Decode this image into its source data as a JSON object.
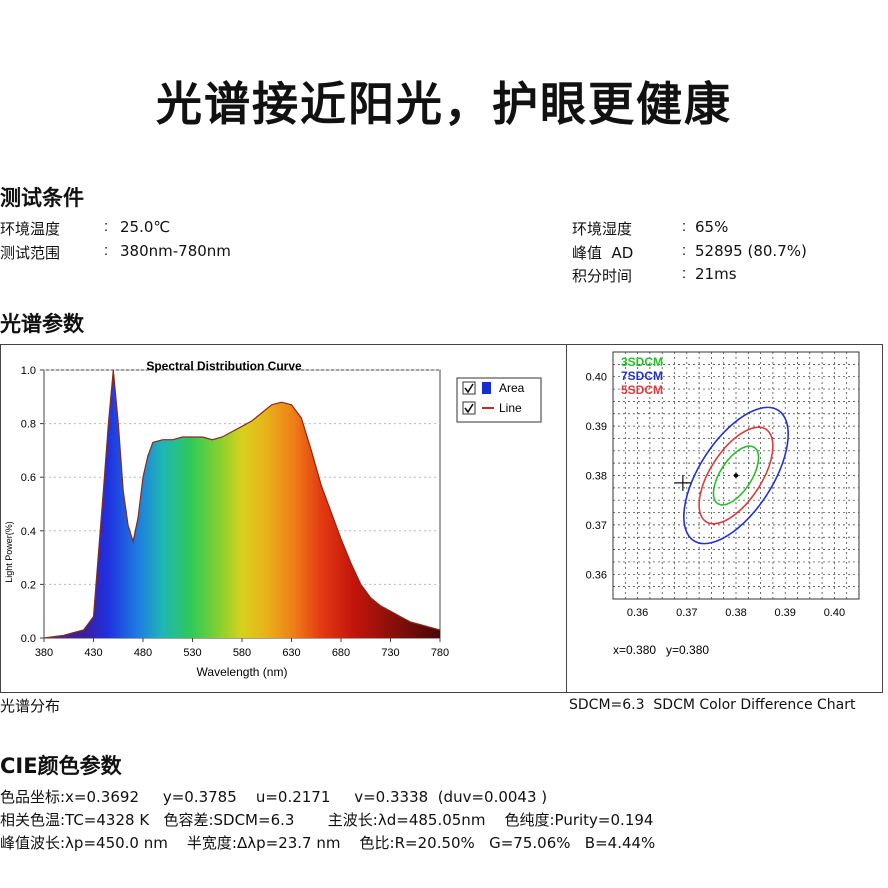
{
  "headline": "光谱接近阳光，护眼更健康",
  "test_conditions": {
    "title": "测试条件",
    "left": [
      {
        "label": "环境温度",
        "value": "25.0℃"
      },
      {
        "label": "测试范围",
        "value": "380nm-780nm"
      }
    ],
    "right": [
      {
        "label": "环境湿度",
        "value": "65%"
      },
      {
        "label": "峰值  AD",
        "value": "52895 (80.7%)"
      },
      {
        "label": "积分时间",
        "value": "21ms"
      }
    ]
  },
  "spectrum_section": {
    "title": "光谱参数",
    "caption_left": "光谱分布",
    "caption_right": "SDCM=6.3  SDCM Color Difference Chart"
  },
  "cie": {
    "title": "CIE颜色参数",
    "line1": "色品坐标:x=0.3692     y=0.3785    u=0.2171     v=0.3338  (duv=0.0043 )",
    "line2": "相关色温:TC=4328 K   色容差:SDCM=6.3       主波长:λd=485.05nm    色纯度:Purity=0.194",
    "line3": "峰值波长:λp=450.0 nm    半宽度:Δλp=23.7 nm    色比:R=20.50%   G=75.06%   B=4.44%"
  },
  "chart_data": [
    {
      "type": "area",
      "title": "Spectral Distribution Curve",
      "xlabel": "Wavelength  (nm)",
      "ylabel": "Light Power(%)",
      "xlim": [
        380,
        780
      ],
      "ylim": [
        0,
        1.0
      ],
      "x_ticks": [
        "380",
        "430",
        "480",
        "530",
        "580",
        "630",
        "680",
        "730",
        "780"
      ],
      "y_ticks": [
        "0.0",
        "0.2",
        "0.4",
        "0.6",
        "0.8",
        "1.0"
      ],
      "legend": [
        "Area",
        "Line"
      ],
      "x": [
        380,
        400,
        410,
        420,
        430,
        440,
        445,
        450,
        455,
        460,
        465,
        470,
        475,
        480,
        485,
        490,
        500,
        510,
        520,
        530,
        540,
        550,
        560,
        570,
        580,
        590,
        600,
        610,
        620,
        630,
        640,
        650,
        660,
        670,
        680,
        690,
        700,
        710,
        720,
        730,
        740,
        750,
        760,
        770,
        780
      ],
      "values": [
        0.0,
        0.01,
        0.02,
        0.03,
        0.08,
        0.55,
        0.8,
        1.0,
        0.8,
        0.55,
        0.42,
        0.36,
        0.45,
        0.6,
        0.68,
        0.73,
        0.74,
        0.74,
        0.75,
        0.75,
        0.75,
        0.74,
        0.75,
        0.77,
        0.79,
        0.81,
        0.84,
        0.87,
        0.88,
        0.87,
        0.82,
        0.7,
        0.57,
        0.47,
        0.37,
        0.28,
        0.2,
        0.15,
        0.12,
        0.1,
        0.08,
        0.06,
        0.05,
        0.04,
        0.03
      ]
    },
    {
      "type": "scatter",
      "title": "SDCM Color Difference Chart",
      "xlim": [
        0.355,
        0.405
      ],
      "ylim": [
        0.355,
        0.405
      ],
      "x_ticks": [
        "0.36",
        "0.37",
        "0.38",
        "0.39",
        "0.40"
      ],
      "y_ticks": [
        "0.36",
        "0.37",
        "0.38",
        "0.39",
        "0.40"
      ],
      "legend": [
        "3SDCM",
        "7SDCM",
        "5SDCM"
      ],
      "center": {
        "x": 0.38,
        "y": 0.38
      },
      "sample": {
        "x": 0.3692,
        "y": 0.3785
      },
      "readout": "x=0.380   y=0.380",
      "colors": {
        "3SDCM": "#22c32a",
        "7SDCM": "#2233cc",
        "5SDCM": "#e03a3a"
      }
    }
  ]
}
